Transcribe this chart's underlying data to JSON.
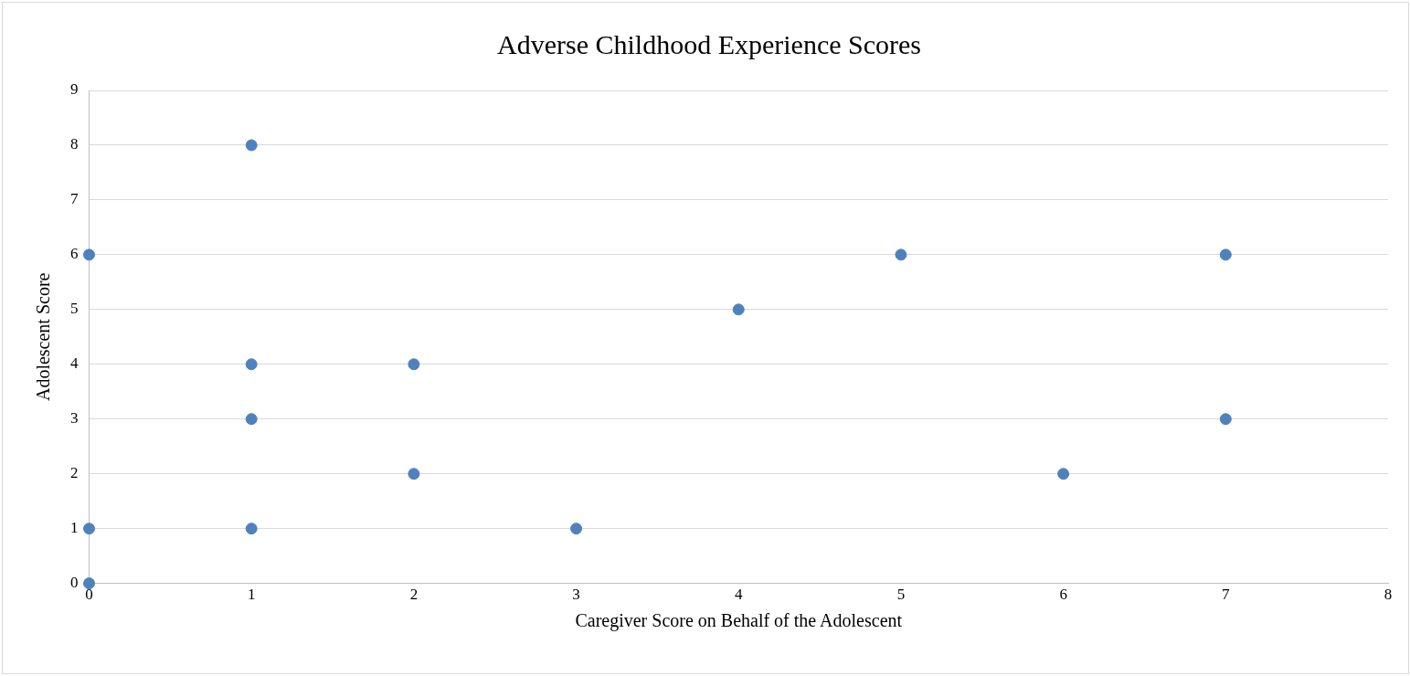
{
  "chart_data": {
    "type": "scatter",
    "title": "Adverse Childhood Experience Scores",
    "xlabel": "Caregiver Score on Behalf of the Adolescent",
    "ylabel": "Adolescent Score",
    "series": [
      {
        "color": "#4f81bd",
        "x": [
          0,
          0,
          0,
          1,
          1,
          1,
          1,
          2,
          2,
          3,
          4,
          5,
          6,
          7,
          7
        ],
        "values": [
          6,
          1,
          0,
          8,
          4,
          3,
          1,
          4,
          2,
          1,
          5,
          6,
          2,
          6,
          3
        ]
      }
    ],
    "xlim": [
      0,
      8
    ],
    "xticks": [
      0,
      1,
      2,
      3,
      4,
      5,
      6,
      7,
      8
    ],
    "ylim": [
      0,
      9
    ],
    "yticks": [
      0,
      1,
      2,
      3,
      4,
      5,
      6,
      7,
      8,
      9
    ],
    "grid": "y",
    "legend": false,
    "marker": "circle"
  }
}
